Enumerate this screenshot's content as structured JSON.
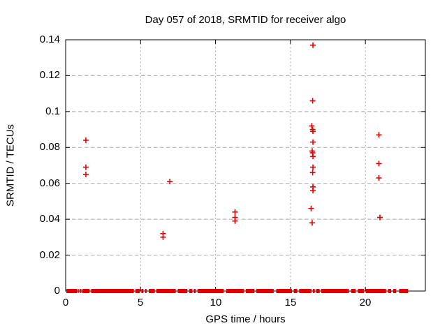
{
  "chart_data": {
    "type": "scatter",
    "title": "Day 057 of 2018, SRMTID for receiver algo",
    "xlabel": "GPS time / hours",
    "ylabel": "SRMTID / TECUs",
    "xlim": [
      0,
      24
    ],
    "ylim": [
      0,
      0.14
    ],
    "xticks": {
      "values": [
        0,
        5,
        10,
        15,
        20
      ],
      "labels": [
        "0",
        "5",
        "10",
        "15",
        "20"
      ]
    },
    "yticks": {
      "values": [
        0,
        0.02,
        0.04,
        0.06,
        0.08,
        0.1,
        0.12,
        0.14
      ],
      "labels": [
        "0",
        "0.02",
        "0.04",
        "0.06",
        "0.08",
        "0.1",
        "0.12",
        "0.14"
      ]
    },
    "grid": {
      "shown": true,
      "color": "#a8a8a8"
    },
    "legend": "none",
    "axis_color": "#000000",
    "series": [
      {
        "name": "SRMTID",
        "marker": "plus",
        "color": "#e00000",
        "points": [
          [
            1.35,
            0.084
          ],
          [
            1.35,
            0.069
          ],
          [
            1.35,
            0.065
          ],
          [
            6.5,
            0.032
          ],
          [
            6.5,
            0.03
          ],
          [
            6.95,
            0.061
          ],
          [
            11.3,
            0.044
          ],
          [
            11.3,
            0.041
          ],
          [
            11.3,
            0.039
          ],
          [
            16.5,
            0.137
          ],
          [
            16.48,
            0.106
          ],
          [
            16.42,
            0.092
          ],
          [
            16.48,
            0.09
          ],
          [
            16.5,
            0.089
          ],
          [
            16.5,
            0.083
          ],
          [
            16.45,
            0.078
          ],
          [
            16.48,
            0.077
          ],
          [
            16.5,
            0.075
          ],
          [
            16.5,
            0.069
          ],
          [
            16.48,
            0.066
          ],
          [
            16.5,
            0.058
          ],
          [
            16.5,
            0.056
          ],
          [
            16.38,
            0.046
          ],
          [
            16.45,
            0.038
          ],
          [
            20.9,
            0.087
          ],
          [
            20.9,
            0.071
          ],
          [
            20.9,
            0.063
          ],
          [
            20.97,
            0.041
          ]
        ]
      }
    ],
    "baseline_band": {
      "y": 0,
      "color": "#e00000",
      "note": "dense run of plus markers along y=0",
      "segments_hours": [
        [
          0.05,
          0.78
        ],
        [
          0.85,
          0.9
        ],
        [
          0.97,
          1.05
        ],
        [
          1.12,
          1.6
        ],
        [
          1.7,
          4.55
        ],
        [
          4.66,
          4.95
        ],
        [
          5.05,
          5.18
        ],
        [
          5.3,
          5.4
        ],
        [
          5.55,
          5.95
        ],
        [
          6.05,
          7.35
        ],
        [
          7.48,
          8.12
        ],
        [
          8.25,
          8.45
        ],
        [
          8.55,
          8.68
        ],
        [
          8.8,
          10.55
        ],
        [
          10.72,
          11.9
        ],
        [
          12.02,
          12.6
        ],
        [
          12.72,
          13.88
        ],
        [
          14.05,
          15.1
        ],
        [
          15.22,
          15.45
        ],
        [
          15.58,
          16.4
        ],
        [
          16.5,
          16.62
        ],
        [
          16.72,
          16.95
        ],
        [
          17.05,
          18.9
        ],
        [
          19.05,
          19.35
        ],
        [
          19.5,
          19.9
        ],
        [
          20.02,
          21.38
        ],
        [
          21.52,
          21.72
        ],
        [
          21.85,
          22.05
        ],
        [
          22.25,
          22.85
        ]
      ]
    }
  }
}
